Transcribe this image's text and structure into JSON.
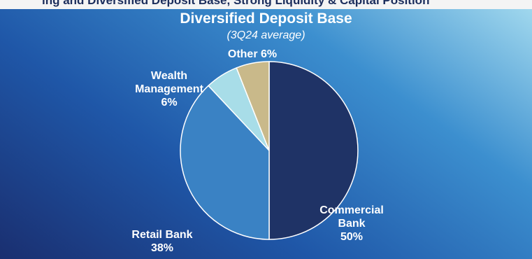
{
  "header": {
    "partial_text": "ing and Diversified Deposit Base, Strong Liquidity & Capital Position"
  },
  "chart_data": {
    "type": "pie",
    "title": "Diversified Deposit Base",
    "subtitle": "(3Q24 average)",
    "slices": [
      {
        "name": "Commercial Bank",
        "value": 50,
        "color": "#1f3366"
      },
      {
        "name": "Retail Bank",
        "value": 38,
        "color": "#3a82c4"
      },
      {
        "name": "Wealth Management",
        "value": 6,
        "color": "#a8dde8"
      },
      {
        "name": "Other",
        "value": 6,
        "color": "#c9b98a"
      }
    ],
    "labels": {
      "commercial": {
        "line1": "Commercial",
        "line2": "Bank",
        "line3": "50%"
      },
      "retail": {
        "line1": "Retail Bank",
        "line2": "38%"
      },
      "wealth": {
        "line1": "Wealth",
        "line2": "Management",
        "line3": "6%"
      },
      "other": {
        "line1": "Other 6%"
      }
    }
  }
}
